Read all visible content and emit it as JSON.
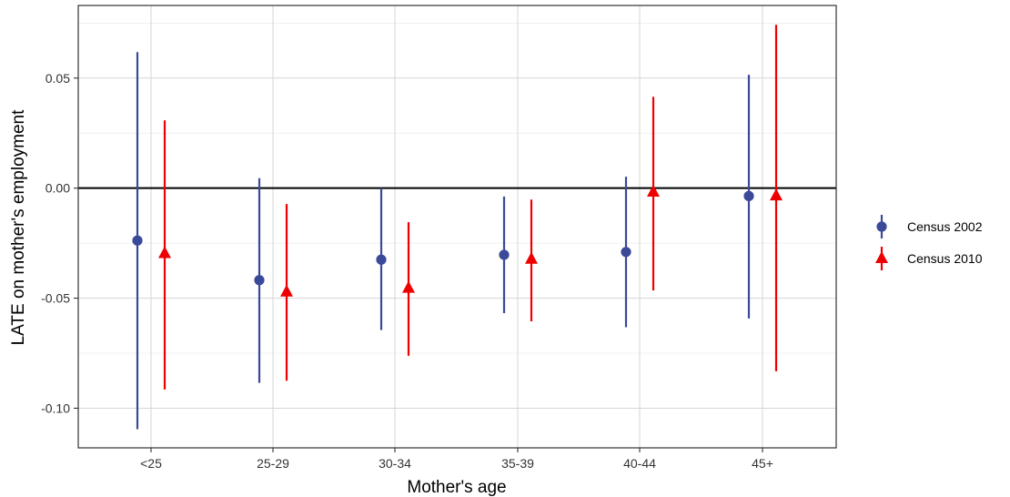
{
  "chart_data": {
    "type": "scatter",
    "subtype": "point-range (estimate with confidence interval), dodged by series",
    "title": "",
    "xlabel": "Mother's age",
    "ylabel": "LATE on mother's employment",
    "categories": [
      "<25",
      "25-29",
      "30-34",
      "35-39",
      "40-44",
      "45+"
    ],
    "ylim": [
      -0.118,
      0.083
    ],
    "yticks": [
      0.05,
      0.0,
      -0.05,
      -0.1
    ],
    "ytick_labels": [
      "0.05",
      "0.00",
      "-0.05",
      "-0.10"
    ],
    "grid": true,
    "reference_line": {
      "y": 0,
      "color": "#000000"
    },
    "legend": {
      "position": "right"
    },
    "series": [
      {
        "name": "Census 2002",
        "color": "#3A4A98",
        "marker": "circle",
        "estimates": [
          -0.0238,
          -0.0418,
          -0.0325,
          -0.0303,
          -0.029,
          -0.0036
        ],
        "lower": [
          -0.1095,
          -0.0885,
          -0.0645,
          -0.0568,
          -0.0632,
          -0.0592
        ],
        "upper": [
          0.0618,
          0.0045,
          0.0,
          -0.0038,
          0.0052,
          0.0515
        ]
      },
      {
        "name": "Census 2010",
        "color": "#EE0000",
        "marker": "triangle",
        "estimates": [
          -0.0297,
          -0.0472,
          -0.0455,
          -0.0323,
          -0.0018,
          -0.0035
        ],
        "lower": [
          -0.0915,
          -0.0875,
          -0.0762,
          -0.0605,
          -0.0465,
          -0.0832
        ],
        "upper": [
          0.0308,
          -0.0072,
          -0.0155,
          -0.0052,
          0.0415,
          0.0742
        ]
      }
    ]
  }
}
